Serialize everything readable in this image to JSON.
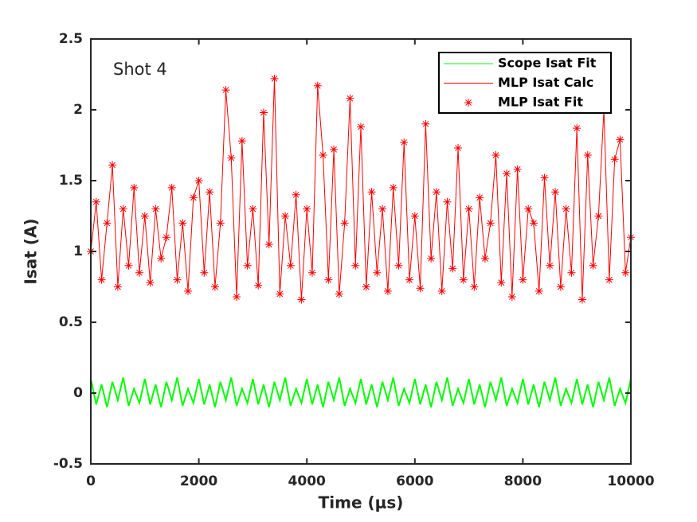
{
  "chart_data": {
    "type": "line",
    "annotation": "Shot 4",
    "x_label": "Time (μs)",
    "y_label": "Isat (A)",
    "xlim": [
      0,
      10000
    ],
    "xticks": [
      0,
      2000,
      4000,
      6000,
      8000,
      10000
    ],
    "ylim": [
      -0.5,
      2.5
    ],
    "yticks": [
      -0.5,
      0,
      0.5,
      1,
      1.5,
      2,
      2.5
    ],
    "legend": "upper right",
    "x": [
      0,
      100,
      200,
      300,
      400,
      500,
      600,
      700,
      800,
      900,
      1000,
      1100,
      1200,
      1300,
      1400,
      1500,
      1600,
      1700,
      1800,
      1900,
      2000,
      2100,
      2200,
      2300,
      2400,
      2500,
      2600,
      2700,
      2800,
      2900,
      3000,
      3100,
      3200,
      3300,
      3400,
      3500,
      3600,
      3700,
      3800,
      3900,
      4000,
      4100,
      4200,
      4300,
      4400,
      4500,
      4600,
      4700,
      4800,
      4900,
      5000,
      5100,
      5200,
      5300,
      5400,
      5500,
      5600,
      5700,
      5800,
      5900,
      6000,
      6100,
      6200,
      6300,
      6400,
      6500,
      6600,
      6700,
      6800,
      6900,
      7000,
      7100,
      7200,
      7300,
      7400,
      7500,
      7600,
      7700,
      7800,
      7900,
      8000,
      8100,
      8200,
      8300,
      8400,
      8500,
      8600,
      8700,
      8800,
      8900,
      9000,
      9100,
      9200,
      9300,
      9400,
      9500,
      9600,
      9700,
      9800,
      9900,
      10000
    ],
    "series": [
      {
        "name": "Scope Isat Fit",
        "color": "#00ff00",
        "style": "line",
        "values": [
          0.1,
          -0.08,
          0.06,
          -0.1,
          0.08,
          -0.05,
          0.11,
          -0.09,
          0.03,
          -0.07,
          0.1,
          -0.08,
          0.06,
          -0.1,
          0.08,
          -0.05,
          0.11,
          -0.09,
          0.03,
          -0.07,
          0.1,
          -0.08,
          0.06,
          -0.1,
          0.08,
          -0.05,
          0.11,
          -0.09,
          0.03,
          -0.07,
          0.1,
          -0.08,
          0.06,
          -0.1,
          0.08,
          -0.05,
          0.11,
          -0.09,
          0.03,
          -0.07,
          0.1,
          -0.08,
          0.06,
          -0.1,
          0.08,
          -0.05,
          0.11,
          -0.09,
          0.03,
          -0.07,
          0.1,
          -0.08,
          0.06,
          -0.1,
          0.08,
          -0.05,
          0.11,
          -0.09,
          0.03,
          -0.07,
          0.1,
          -0.08,
          0.06,
          -0.1,
          0.08,
          -0.05,
          0.11,
          -0.09,
          0.03,
          -0.07,
          0.1,
          -0.08,
          0.06,
          -0.1,
          0.08,
          -0.05,
          0.11,
          -0.09,
          0.03,
          -0.07,
          0.1,
          -0.08,
          0.06,
          -0.1,
          0.08,
          -0.05,
          0.11,
          -0.09,
          0.03,
          -0.07,
          0.1,
          -0.08,
          0.06,
          -0.1,
          0.08,
          -0.05,
          0.11,
          -0.09,
          0.03,
          -0.07,
          0.1
        ]
      },
      {
        "name": "MLP Isat Calc",
        "color": "#ff0000",
        "style": "line",
        "values": [
          1.0,
          1.35,
          0.8,
          1.2,
          1.61,
          0.75,
          1.3,
          0.9,
          1.45,
          0.85,
          1.25,
          0.78,
          1.3,
          0.95,
          1.1,
          1.45,
          0.8,
          1.2,
          0.72,
          1.38,
          1.5,
          0.85,
          1.42,
          0.75,
          1.2,
          2.14,
          1.66,
          0.68,
          1.78,
          0.9,
          1.3,
          0.76,
          1.98,
          1.05,
          2.22,
          0.7,
          1.25,
          0.9,
          1.4,
          0.66,
          1.3,
          0.85,
          2.17,
          1.68,
          0.8,
          1.72,
          0.7,
          1.2,
          2.08,
          0.9,
          1.88,
          0.75,
          1.42,
          0.85,
          1.3,
          0.72,
          1.45,
          0.9,
          1.77,
          0.8,
          1.25,
          0.74,
          1.9,
          0.95,
          1.42,
          0.72,
          1.35,
          0.88,
          1.73,
          0.8,
          1.3,
          0.75,
          1.38,
          0.95,
          1.2,
          1.68,
          0.78,
          1.55,
          0.68,
          1.58,
          0.8,
          1.3,
          1.2,
          0.72,
          1.52,
          0.9,
          1.42,
          0.75,
          1.3,
          0.85,
          1.87,
          0.66,
          1.68,
          0.9,
          1.25,
          2.0,
          0.8,
          1.65,
          1.79,
          0.85,
          1.1
        ]
      },
      {
        "name": "MLP Isat Fit",
        "color": "#ff0000",
        "style": "star",
        "values": [
          1.0,
          1.35,
          0.8,
          1.2,
          1.61,
          0.75,
          1.3,
          0.9,
          1.45,
          0.85,
          1.25,
          0.78,
          1.3,
          0.95,
          1.1,
          1.45,
          0.8,
          1.2,
          0.72,
          1.38,
          1.5,
          0.85,
          1.42,
          0.75,
          1.2,
          2.14,
          1.66,
          0.68,
          1.78,
          0.9,
          1.3,
          0.76,
          1.98,
          1.05,
          2.22,
          0.7,
          1.25,
          0.9,
          1.4,
          0.66,
          1.3,
          0.85,
          2.17,
          1.68,
          0.8,
          1.72,
          0.7,
          1.2,
          2.08,
          0.9,
          1.88,
          0.75,
          1.42,
          0.85,
          1.3,
          0.72,
          1.45,
          0.9,
          1.77,
          0.8,
          1.25,
          0.74,
          1.9,
          0.95,
          1.42,
          0.72,
          1.35,
          0.88,
          1.73,
          0.8,
          1.3,
          0.75,
          1.38,
          0.95,
          1.2,
          1.68,
          0.78,
          1.55,
          0.68,
          1.58,
          0.8,
          1.3,
          1.2,
          0.72,
          1.52,
          0.9,
          1.42,
          0.75,
          1.3,
          0.85,
          1.87,
          0.66,
          1.68,
          0.9,
          1.25,
          2.0,
          0.8,
          1.65,
          1.79,
          0.85,
          1.1
        ]
      }
    ]
  }
}
